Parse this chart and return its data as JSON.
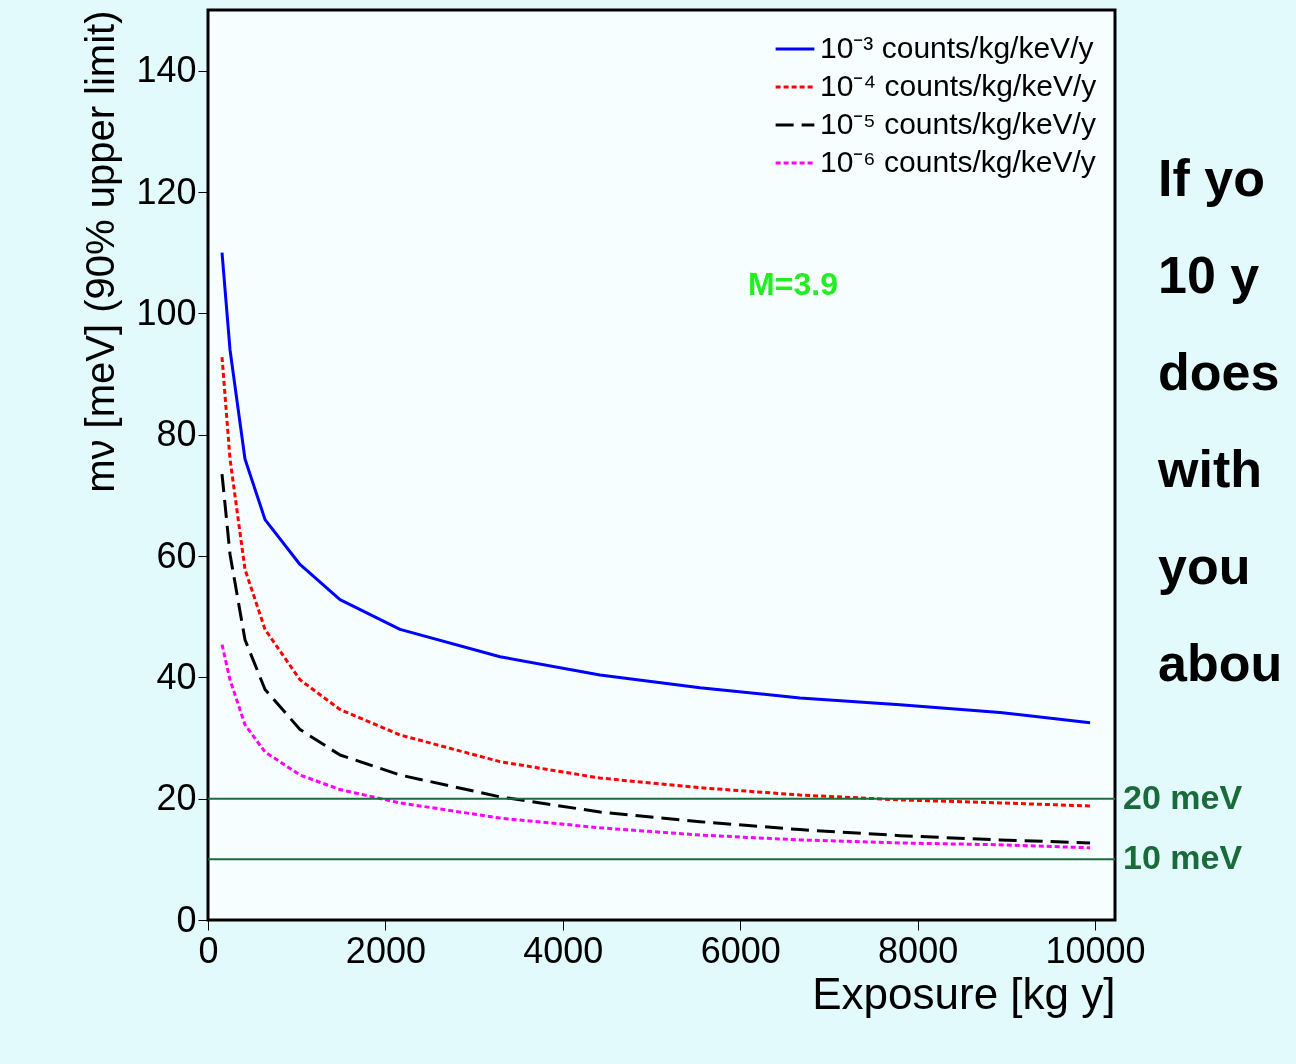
{
  "chart_data": {
    "type": "line",
    "xlabel": "Exposure [kg y]",
    "ylabel": "mν [meV] (90% upper limit)",
    "x": [
      158,
      248,
      417,
      643,
      1037,
      1488,
      2165,
      3292,
      4419,
      5547,
      6674,
      7801,
      8929,
      9944
    ],
    "series": [
      {
        "name": "10⁻³ counts/kg/keV/y",
        "color": "#0000ff",
        "line_style": "solid",
        "values": [
          110,
          94,
          76,
          66,
          58.6,
          52.8,
          47.9,
          43.4,
          40.4,
          38.3,
          36.6,
          35.5,
          34.2,
          32.5
        ]
      },
      {
        "name": "10⁻⁴ counts/kg/keV/y",
        "color": "#ff0000",
        "line_style": "dotted",
        "values": [
          92.8,
          76,
          57.8,
          47.9,
          39.6,
          34.7,
          30.5,
          26.1,
          23.4,
          21.8,
          20.6,
          19.8,
          19.3,
          18.8
        ]
      },
      {
        "name": "10⁻⁵ counts/kg/keV/y",
        "color": "#000000",
        "line_style": "dashed",
        "values": [
          73.5,
          60.3,
          46.2,
          38,
          31.4,
          27.2,
          23.9,
          20.3,
          17.8,
          16.2,
          14.9,
          13.9,
          13.2,
          12.7
        ]
      },
      {
        "name": "10⁻⁶ counts/kg/keV/y",
        "color": "#ff00ff",
        "line_style": "dotted",
        "values": [
          45.4,
          39.6,
          32.2,
          27.7,
          23.9,
          21.5,
          19.3,
          16.8,
          15.2,
          14.0,
          13.2,
          12.7,
          12.4,
          11.9
        ]
      }
    ],
    "xlim": [
      0,
      10225
    ],
    "xticks": [
      0,
      2000,
      4000,
      6000,
      8000,
      10000
    ],
    "ylim": [
      0,
      150
    ],
    "yticks": [
      0,
      20,
      40,
      60,
      80,
      100,
      120,
      140
    ],
    "ref_lines": [
      {
        "axis": "y",
        "value": 20,
        "label": "20 meV",
        "color": "#1a6b3c"
      },
      {
        "axis": "y",
        "value": 10,
        "label": "10 meV",
        "color": "#1a6b3c"
      }
    ],
    "annotations": [
      "M=3.9",
      "If yo",
      "10 y",
      "does",
      "with",
      "you",
      "abou"
    ],
    "legend": "top right",
    "grid": false,
    "marker": "none"
  }
}
